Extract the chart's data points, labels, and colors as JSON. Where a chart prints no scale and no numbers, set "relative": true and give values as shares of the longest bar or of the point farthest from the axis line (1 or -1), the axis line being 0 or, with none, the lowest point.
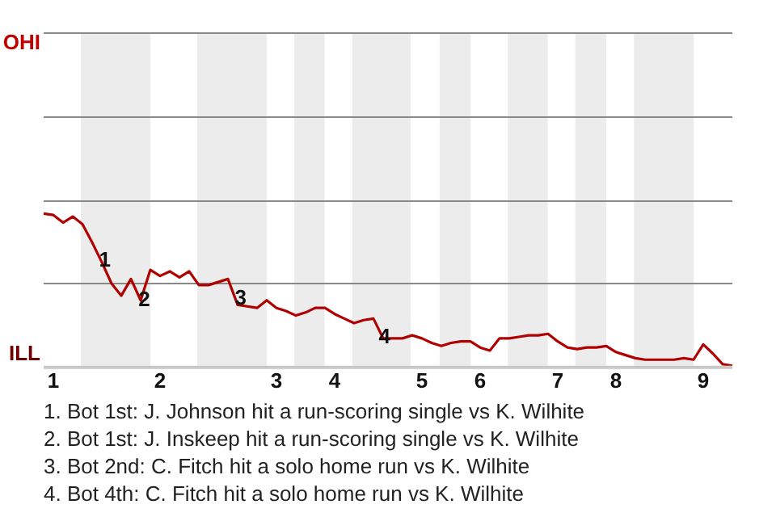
{
  "chart_data": {
    "type": "line",
    "relative": true,
    "categories": [
      null,
      "1",
      null,
      null,
      null,
      null,
      null,
      null,
      null,
      null,
      null,
      null,
      "2",
      null,
      null,
      null,
      null,
      null,
      null,
      null,
      null,
      null,
      null,
      null,
      "3",
      null,
      null,
      null,
      null,
      null,
      "4",
      null,
      null,
      null,
      null,
      null,
      null,
      null,
      null,
      "5",
      null,
      null,
      null,
      null,
      null,
      "6",
      null,
      null,
      null,
      null,
      null,
      null,
      null,
      "7",
      null,
      null,
      null,
      null,
      null,
      "8",
      null,
      null,
      null,
      null,
      null,
      null,
      null,
      null,
      "9",
      null,
      null,
      null
    ],
    "series": [
      {
        "color": "#b00000",
        "values": [
          1,
          0.99,
          0.94,
          0.98,
          0.93,
          0.81,
          0.68,
          0.54,
          0.46,
          0.57,
          0.43,
          0.63,
          0.59,
          0.62,
          0.58,
          0.62,
          0.53,
          0.53,
          0.55,
          0.57,
          0.4,
          0.39,
          0.38,
          0.43,
          0.38,
          0.36,
          0.33,
          0.35,
          0.38,
          0.38,
          0.34,
          0.31,
          0.28,
          0.3,
          0.31,
          0.18,
          0.18,
          0.18,
          0.2,
          0.18,
          0.15,
          0.13,
          0.15,
          0.16,
          0.16,
          0.12,
          0.1,
          0.18,
          0.18,
          0.19,
          0.2,
          0.2,
          0.21,
          0.16,
          0.12,
          0.11,
          0.12,
          0.12,
          0.13,
          0.09,
          0.07,
          0.05,
          0.04,
          0.04,
          0.04,
          0.04,
          0.05,
          0.04,
          0.14,
          0.08,
          0.01,
          0
        ]
      }
    ],
    "legend": false,
    "marker": "none",
    "line_style": "solid",
    "ref_lines": [
      {
        "axis": "y",
        "value": 0.55,
        "color": "#888888"
      },
      {
        "axis": "y",
        "value": 1.09,
        "color": "#888888"
      },
      {
        "axis": "y",
        "value": 1.64,
        "color": "#888888"
      },
      {
        "axis": "y",
        "value": 2.19,
        "color": "#888888"
      }
    ],
    "annotations": [
      "OHI",
      "ILL",
      "1",
      "2",
      "3",
      "4",
      "1. Bot 1st: J. Johnson hit a run-scoring single vs K. Wilhite",
      "2. Bot 1st: J. Inskeep hit a run-scoring single vs K. Wilhite",
      "3. Bot 2nd: C. Fitch hit a solo home run vs K. Wilhite",
      "4. Bot 4th: C. Fitch hit a solo home run vs K. Wilhite"
    ]
  }
}
